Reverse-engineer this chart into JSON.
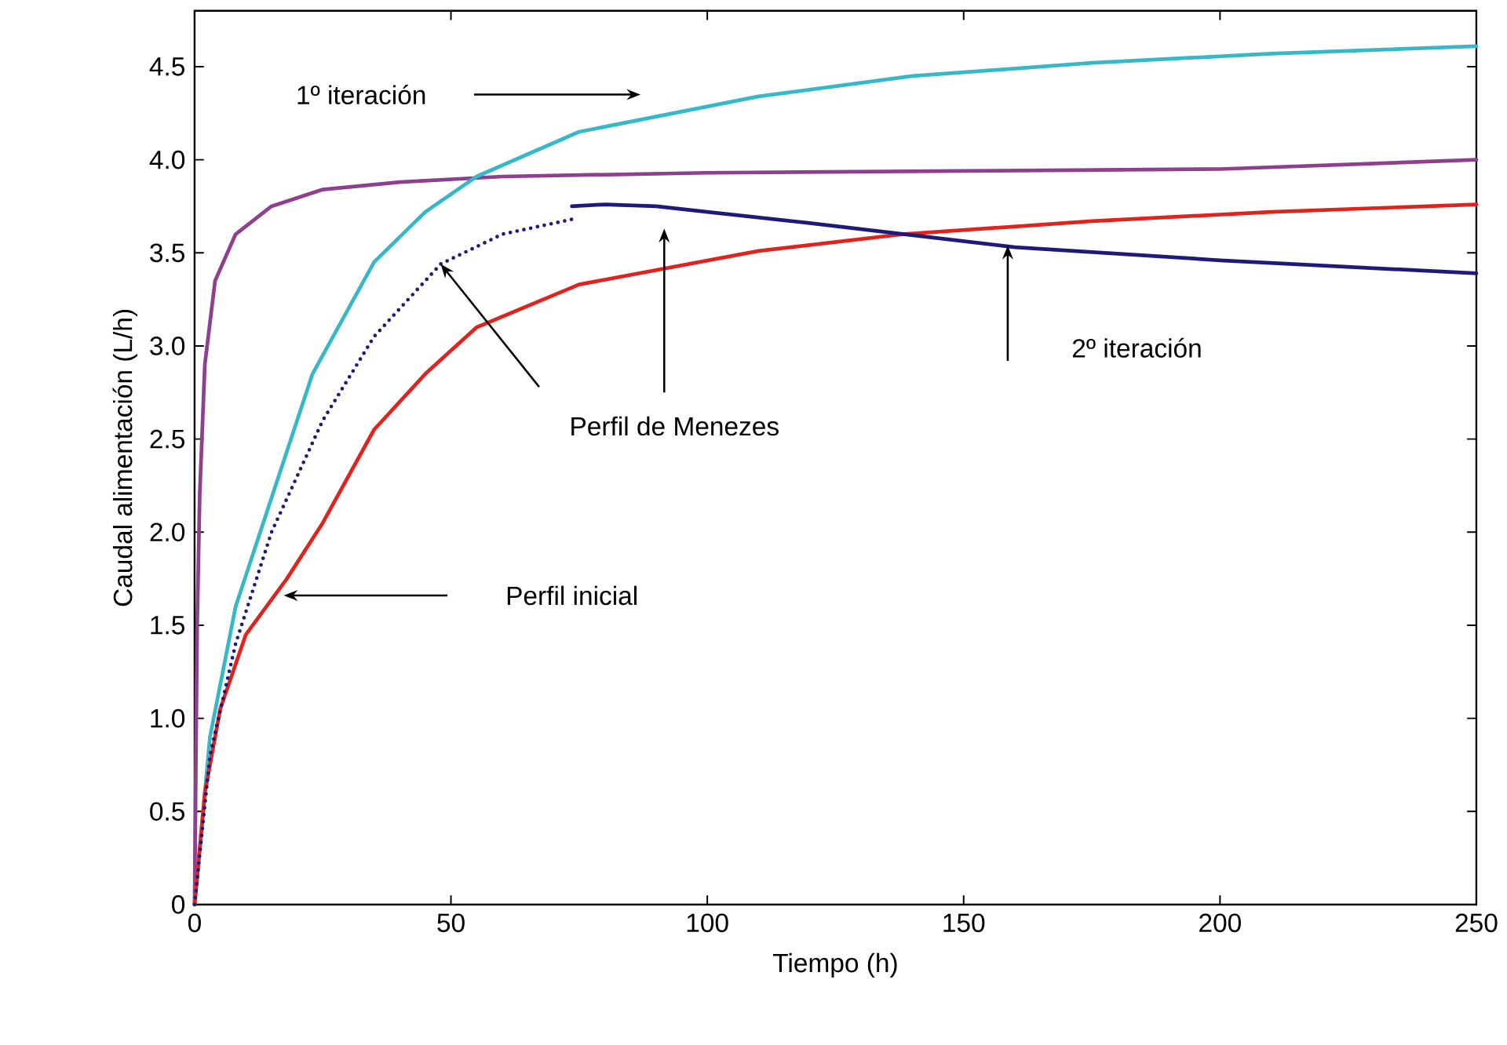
{
  "chart_data": {
    "type": "line",
    "xlabel": "Tiempo (h)",
    "ylabel": "Caudal alimentación (L/h)",
    "xlim": [
      0,
      250
    ],
    "ylim": [
      0,
      4.8
    ],
    "xticks": [
      0,
      50,
      100,
      150,
      200,
      250
    ],
    "yticks": [
      0,
      0.5,
      {
        "value": 1,
        "label": "1.0"
      },
      1.5,
      {
        "value": 2,
        "label": "2.0"
      },
      2.5,
      {
        "value": 3,
        "label": "3.0"
      },
      3.5,
      {
        "value": 4,
        "label": "4.0"
      },
      4.5
    ],
    "grid": false,
    "line_style": "solid",
    "series": [
      {
        "color": "#8e3f8e",
        "x": [
          0,
          0.5,
          1,
          2,
          4,
          8,
          15,
          25,
          40,
          60,
          100,
          150,
          200,
          250
        ],
        "values": [
          0,
          1.5,
          2.2,
          2.9,
          3.35,
          3.6,
          3.75,
          3.84,
          3.88,
          3.91,
          3.93,
          3.94,
          3.95,
          4.0
        ]
      },
      {
        "color": "#36b8c8",
        "x": [
          0,
          3,
          8,
          14,
          23,
          35,
          45,
          55,
          75,
          110,
          140,
          175,
          210,
          250
        ],
        "values": [
          0,
          0.9,
          1.6,
          2.1,
          2.85,
          3.45,
          3.72,
          3.91,
          4.15,
          4.34,
          4.45,
          4.52,
          4.57,
          4.61
        ]
      },
      {
        "color": "#e0231e",
        "x": [
          0,
          2,
          5,
          10,
          18,
          25,
          35,
          45,
          55,
          75,
          110,
          138,
          175,
          210,
          250
        ],
        "values": [
          0,
          0.6,
          1.05,
          1.45,
          1.75,
          2.05,
          2.55,
          2.85,
          3.1,
          3.33,
          3.51,
          3.6,
          3.67,
          3.72,
          3.76
        ]
      },
      {
        "color": "#1e1a78",
        "line_style": "dotted",
        "x": [
          0,
          3,
          8,
          15,
          25,
          35,
          48,
          60,
          73.6
        ],
        "values": [
          0,
          0.8,
          1.4,
          2.0,
          2.6,
          3.05,
          3.44,
          3.6,
          3.68
        ]
      },
      {
        "color": "#1e1a78",
        "x": [
          73.6,
          80,
          90,
          100,
          120,
          138.5,
          160,
          200,
          250
        ],
        "values": [
          3.75,
          3.76,
          3.75,
          3.72,
          3.66,
          3.6,
          3.53,
          3.46,
          3.39
        ]
      }
    ],
    "annotations": [
      "1º iteración",
      "Perfil inicial",
      "Perfil de Menezes",
      "2º iteración"
    ]
  }
}
